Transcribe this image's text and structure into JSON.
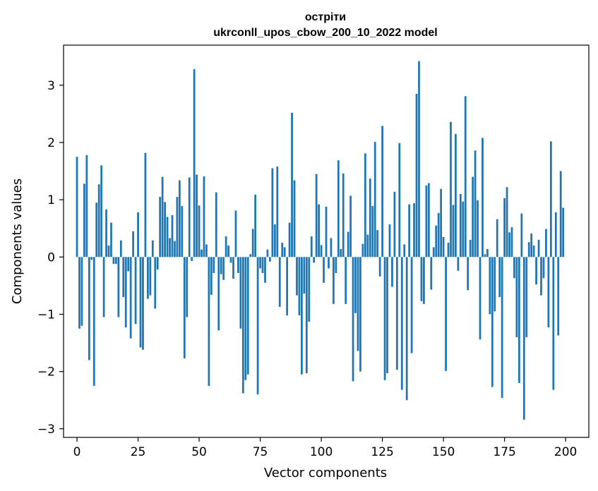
{
  "chart_data": {
    "type": "bar",
    "title": "острiти",
    "subtitle": "ukrconll_upos_cbow_200_10_2022 model",
    "xlabel": "Vector components",
    "ylabel": "Components values",
    "xlim": [
      -5.5,
      209.5
    ],
    "ylim": [
      -3.15,
      3.7
    ],
    "xticks": [
      0,
      25,
      50,
      75,
      100,
      125,
      150,
      175,
      200
    ],
    "yticks": [
      -3,
      -2,
      -1,
      0,
      1,
      2,
      3
    ],
    "ytick_labels": [
      "−3",
      "−2",
      "−1",
      "0",
      "1",
      "2",
      "3"
    ],
    "bar_color": "#1f77b4",
    "x": [
      0,
      1,
      2,
      3,
      4,
      5,
      6,
      7,
      8,
      9,
      10,
      11,
      12,
      13,
      14,
      15,
      16,
      17,
      18,
      19,
      20,
      21,
      22,
      23,
      24,
      25,
      26,
      27,
      28,
      29,
      30,
      31,
      32,
      33,
      34,
      35,
      36,
      37,
      38,
      39,
      40,
      41,
      42,
      43,
      44,
      45,
      46,
      47,
      48,
      49,
      50,
      51,
      52,
      53,
      54,
      55,
      56,
      57,
      58,
      59,
      60,
      61,
      62,
      63,
      64,
      65,
      66,
      67,
      68,
      69,
      70,
      71,
      72,
      73,
      74,
      75,
      76,
      77,
      78,
      79,
      80,
      81,
      82,
      83,
      84,
      85,
      86,
      87,
      88,
      89,
      90,
      91,
      92,
      93,
      94,
      95,
      96,
      97,
      98,
      99,
      100,
      101,
      102,
      103,
      104,
      105,
      106,
      107,
      108,
      109,
      110,
      111,
      112,
      113,
      114,
      115,
      116,
      117,
      118,
      119,
      120,
      121,
      122,
      123,
      124,
      125,
      126,
      127,
      128,
      129,
      130,
      131,
      132,
      133,
      134,
      135,
      136,
      137,
      138,
      139,
      140,
      141,
      142,
      143,
      144,
      145,
      146,
      147,
      148,
      149,
      150,
      151,
      152,
      153,
      154,
      155,
      156,
      157,
      158,
      159,
      160,
      161,
      162,
      163,
      164,
      165,
      166,
      167,
      168,
      169,
      170,
      171,
      172,
      173,
      174,
      175,
      176,
      177,
      178,
      179,
      180,
      181,
      182,
      183,
      184,
      185,
      186,
      187,
      188,
      189,
      190,
      191,
      192,
      193,
      194,
      195,
      196,
      197,
      198,
      199
    ],
    "values": [
      1.75,
      -1.25,
      -1.2,
      1.28,
      1.78,
      -1.8,
      -0.05,
      -2.25,
      0.95,
      1.27,
      1.6,
      -1.05,
      0.83,
      0.2,
      0.6,
      -0.12,
      -0.12,
      -1.05,
      0.29,
      -0.7,
      -1.23,
      -0.25,
      -1.42,
      0.45,
      -1.17,
      0.78,
      -1.58,
      -1.62,
      1.82,
      -0.73,
      -0.67,
      0.29,
      -0.9,
      -0.22,
      1.05,
      1.4,
      0.96,
      0.7,
      0.33,
      0.73,
      0.28,
      1.05,
      1.34,
      0.89,
      -1.77,
      -1.05,
      1.39,
      -0.07,
      3.28,
      1.44,
      0.9,
      0.13,
      1.41,
      0.22,
      -2.25,
      -0.66,
      -0.28,
      1.13,
      -1.28,
      -0.3,
      -0.4,
      0.36,
      0.2,
      -0.1,
      -0.38,
      0.81,
      -0.28,
      -1.25,
      -2.38,
      -2.15,
      -2.05,
      0.05,
      0.49,
      1.09,
      -2.4,
      -0.2,
      -0.28,
      -0.45,
      0.13,
      -0.08,
      1.55,
      0.57,
      1.58,
      -0.87,
      0.25,
      0.17,
      -1.02,
      0.6,
      2.52,
      1.34,
      -0.67,
      -1.02,
      -2.05,
      -0.64,
      -2.03,
      -1.13,
      0.36,
      -0.1,
      1.45,
      0.92,
      0.21,
      -0.45,
      0.88,
      -0.2,
      0.33,
      -0.82,
      -0.28,
      1.69,
      0.14,
      1.46,
      -0.82,
      0.44,
      1.07,
      -2.17,
      -0.98,
      -1.64,
      -2.0,
      0.23,
      1.81,
      0.39,
      1.37,
      0.89,
      2.01,
      0.47,
      -0.34,
      2.29,
      -2.15,
      -2.03,
      0.57,
      -0.52,
      1.14,
      -1.97,
      1.99,
      -2.32,
      0.22,
      -2.5,
      0.92,
      -1.68,
      0.94,
      2.85,
      3.42,
      -0.77,
      -0.82,
      1.25,
      1.29,
      -0.57,
      0.17,
      0.55,
      0.77,
      1.19,
      0.35,
      -1.99,
      0.25,
      2.36,
      0.91,
      2.15,
      -0.24,
      1.1,
      0.97,
      2.81,
      -0.58,
      0.3,
      1.4,
      1.86,
      0.99,
      -1.44,
      2.08,
      0.05,
      0.14,
      -1.0,
      -2.27,
      -0.95,
      0.66,
      -0.7,
      -2.46,
      1.03,
      1.22,
      0.43,
      0.52,
      -0.37,
      -1.4,
      -2.2,
      0.76,
      -2.84,
      -1.4,
      0.26,
      0.41,
      0.2,
      -0.48,
      0.3,
      -0.67,
      -0.37,
      0.49,
      -1.23,
      2.02,
      -2.32,
      0.78,
      -1.37,
      1.5,
      0.86
    ]
  }
}
